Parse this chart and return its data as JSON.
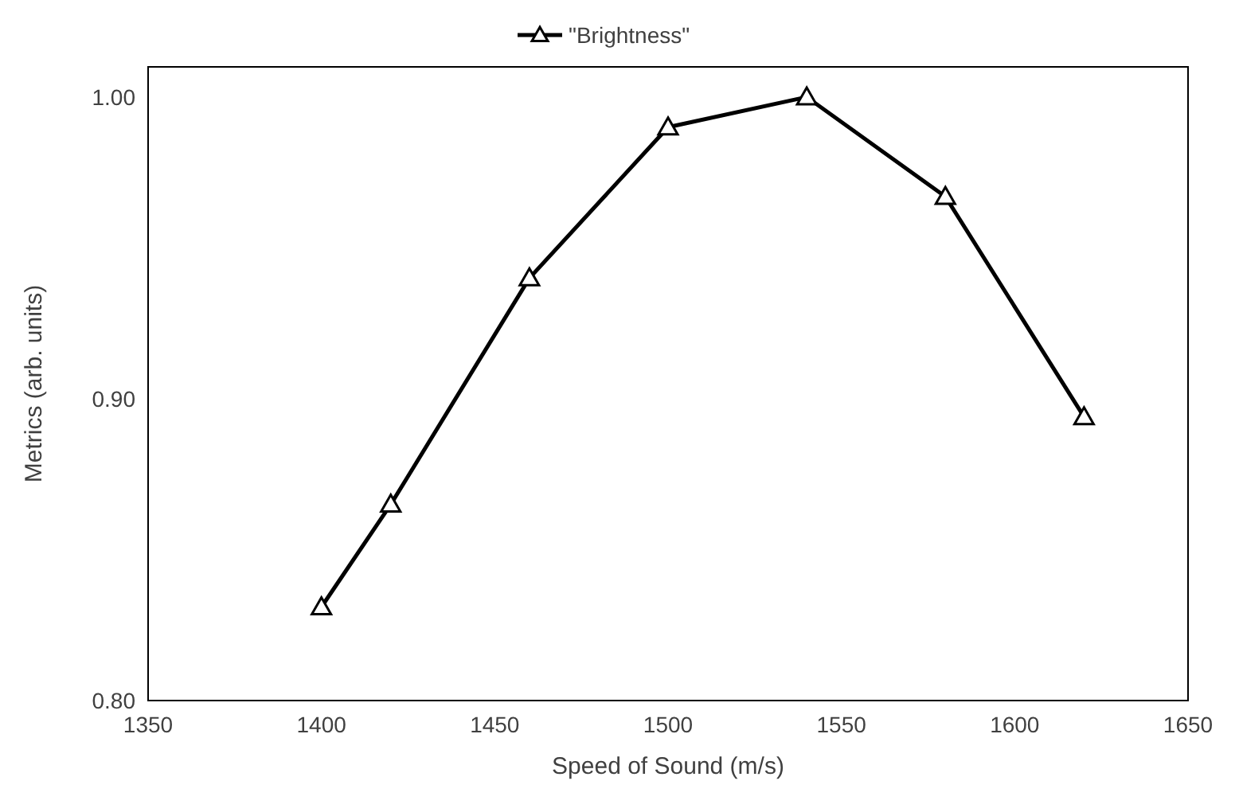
{
  "chart_data": {
    "type": "line",
    "xlabel": "Speed of Sound (m/s)",
    "ylabel": "Metrics (arb. units)",
    "x": [
      1400,
      1420,
      1460,
      1500,
      1540,
      1580,
      1620
    ],
    "series": [
      {
        "name": "\"Brightness\"",
        "color": "#000000",
        "values": [
          0.831,
          0.865,
          0.94,
          0.99,
          1.0,
          0.967,
          0.894
        ]
      }
    ],
    "xlim": [
      1350,
      1650
    ],
    "xticks": [
      1350,
      1400,
      1450,
      1500,
      1550,
      1600,
      1650
    ],
    "ylim": [
      0.8,
      1.01
    ],
    "yticks": [
      {
        "value": 0.8,
        "label": "0.80"
      },
      {
        "value": 0.9,
        "label": "0.90"
      },
      {
        "value": 1.0,
        "label": "1.00"
      }
    ],
    "grid": false,
    "legend": "top",
    "marker": "triangle",
    "line_style": "solid"
  }
}
